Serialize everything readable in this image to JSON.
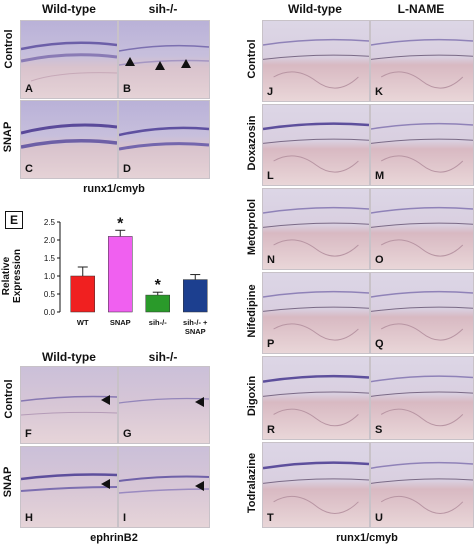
{
  "left_top": {
    "col_headers": [
      "Wild-type",
      "sih-/-"
    ],
    "row_labels": [
      "Control",
      "SNAP"
    ],
    "panels": [
      "A",
      "B",
      "C",
      "D"
    ],
    "caption": "runx1/cmyb"
  },
  "chart": {
    "box_label": "E",
    "ylabel": "Relative Expression"
  },
  "left_bottom": {
    "col_headers": [
      "Wild-type",
      "sih-/-"
    ],
    "row_labels": [
      "Control",
      "SNAP"
    ],
    "panels": [
      "F",
      "G",
      "H",
      "I"
    ],
    "caption": "ephrinB2"
  },
  "right": {
    "col_headers": [
      "Wild-type",
      "L-NAME"
    ],
    "row_labels": [
      "Control",
      "Doxazosin",
      "Metoprolol",
      "Nifedipine",
      "Digoxin",
      "Todralazine"
    ],
    "panels": [
      "J",
      "K",
      "L",
      "M",
      "N",
      "O",
      "P",
      "Q",
      "R",
      "S",
      "T",
      "U"
    ],
    "caption": "runx1/cmyb"
  },
  "chart_data": {
    "type": "bar",
    "categories": [
      "WT",
      "SNAP",
      "sih-/-",
      "sih-/- + SNAP"
    ],
    "values": [
      1.0,
      2.1,
      0.47,
      0.9
    ],
    "errors": [
      0.25,
      0.17,
      0.08,
      0.14
    ],
    "significance": [
      "",
      "*",
      "*",
      ""
    ],
    "colors": [
      "#f02020",
      "#f060f0",
      "#2a9a2a",
      "#1c3f8f"
    ],
    "ylim": [
      0,
      2.5
    ],
    "yticks": [
      "0.0",
      "0.5",
      "1.0",
      "1.5",
      "2.0",
      "2.5"
    ],
    "ylabel": "Relative Expression"
  }
}
